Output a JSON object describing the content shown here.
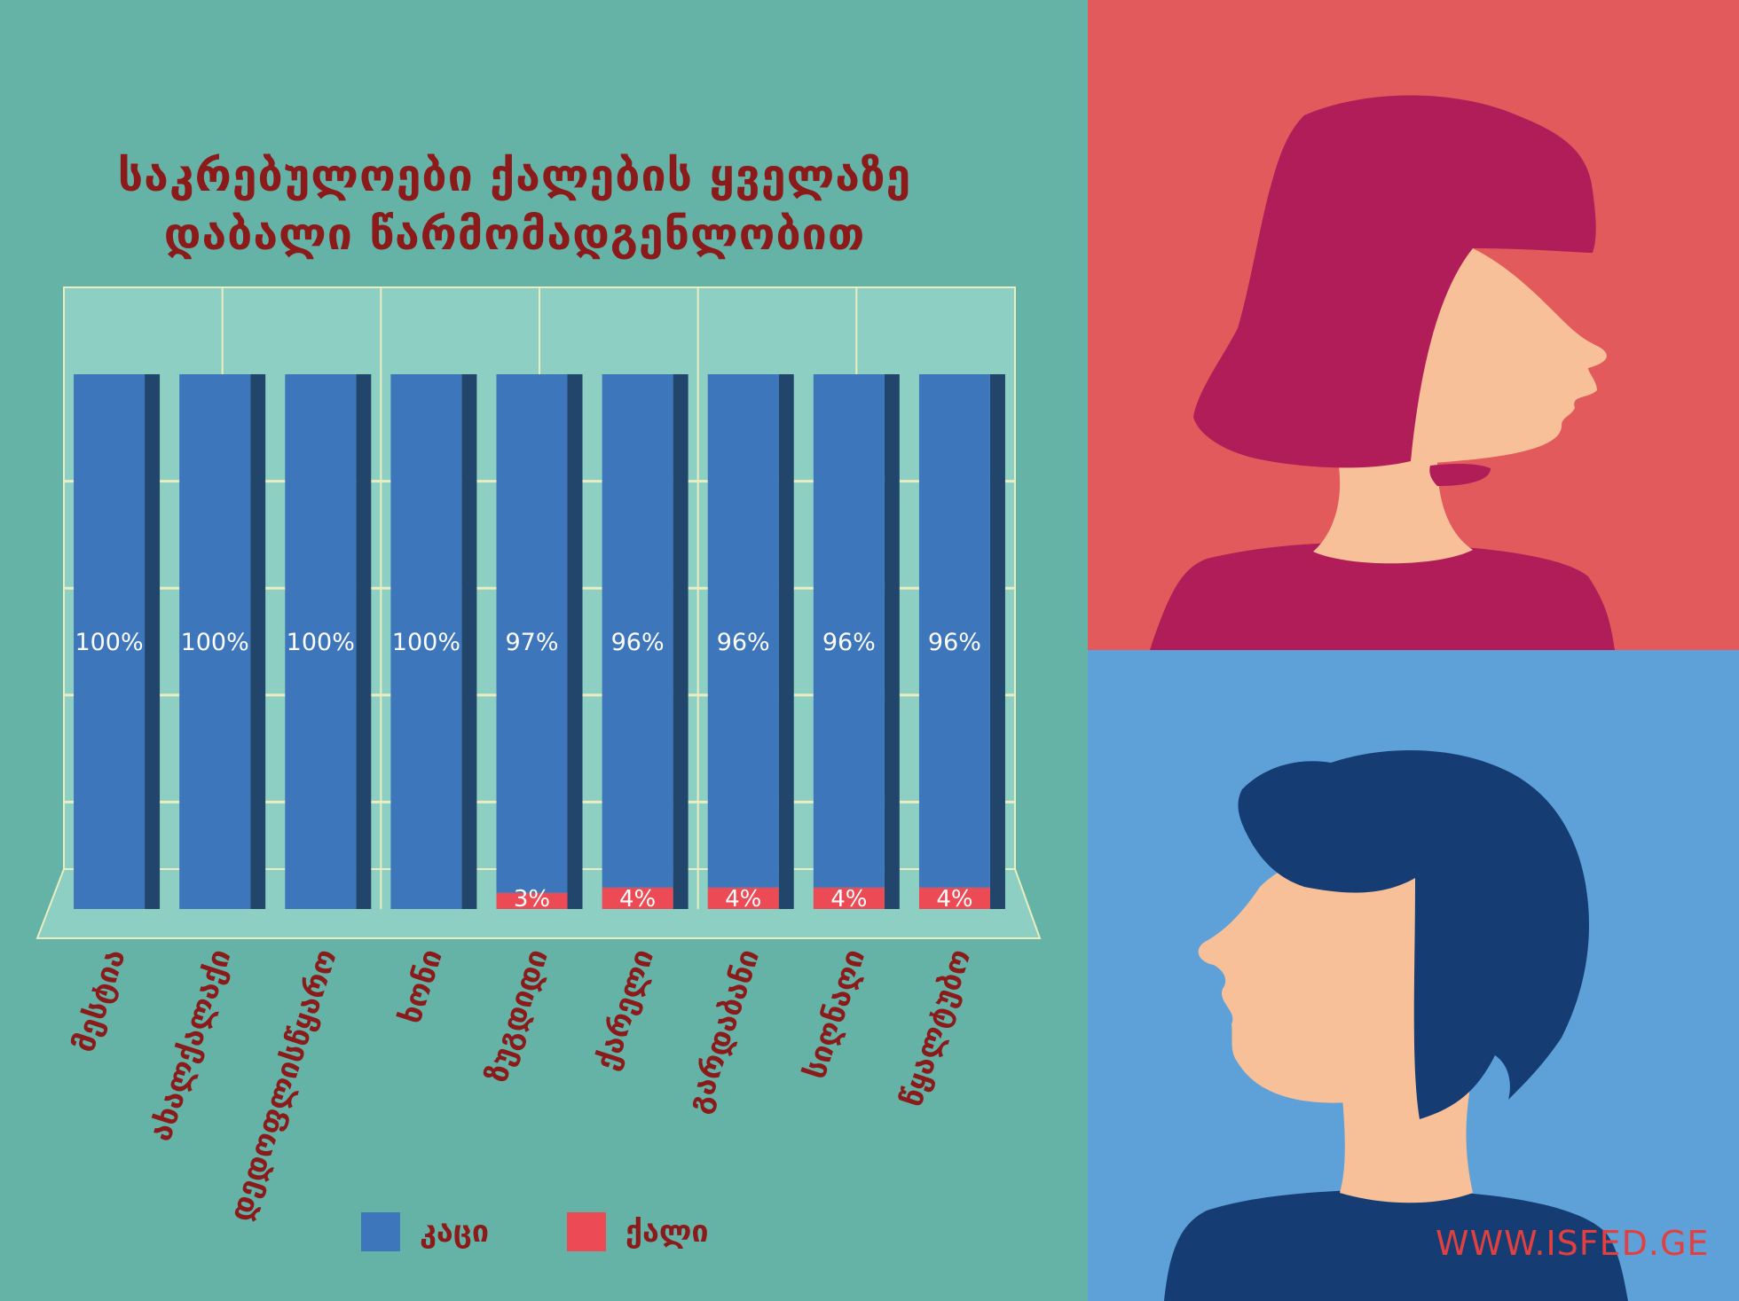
{
  "title_line1": "საკრებულოები ქალების ყველაზე",
  "title_line2": "დაბალი წარმომადგენლობით",
  "website": "WWW.ISFED.GE",
  "colors": {
    "men": "#3e76bb",
    "women": "#ec4a55",
    "men_side": "#22466b",
    "background": "#64b3a6",
    "accent_title": "#8b1a1a"
  },
  "legend": {
    "men_label": "კაცი",
    "women_label": "ქალი"
  },
  "chart_data": {
    "type": "bar",
    "stacked": true,
    "categories": [
      "მესტია",
      "ახალქალაქი",
      "დედოფლისწყარო",
      "ხონი",
      "ზუგდიდი",
      "ქარელი",
      "გარდაბანი",
      "სიღნაღი",
      "წყალტუბო"
    ],
    "series": [
      {
        "name": "კაცი",
        "values": [
          100,
          100,
          100,
          100,
          97,
          96,
          96,
          96,
          96
        ],
        "labels": [
          "100%",
          "100%",
          "100%",
          "100%",
          "97%",
          "96%",
          "96%",
          "96%",
          "96%"
        ]
      },
      {
        "name": "ქალი",
        "values": [
          0,
          0,
          0,
          0,
          3,
          4,
          4,
          4,
          4
        ],
        "labels": [
          "",
          "",
          "",
          "",
          "3%",
          "4%",
          "4%",
          "4%",
          "4%"
        ]
      }
    ],
    "ylim": [
      0,
      100
    ],
    "grid": true,
    "legend_position": "bottom"
  }
}
